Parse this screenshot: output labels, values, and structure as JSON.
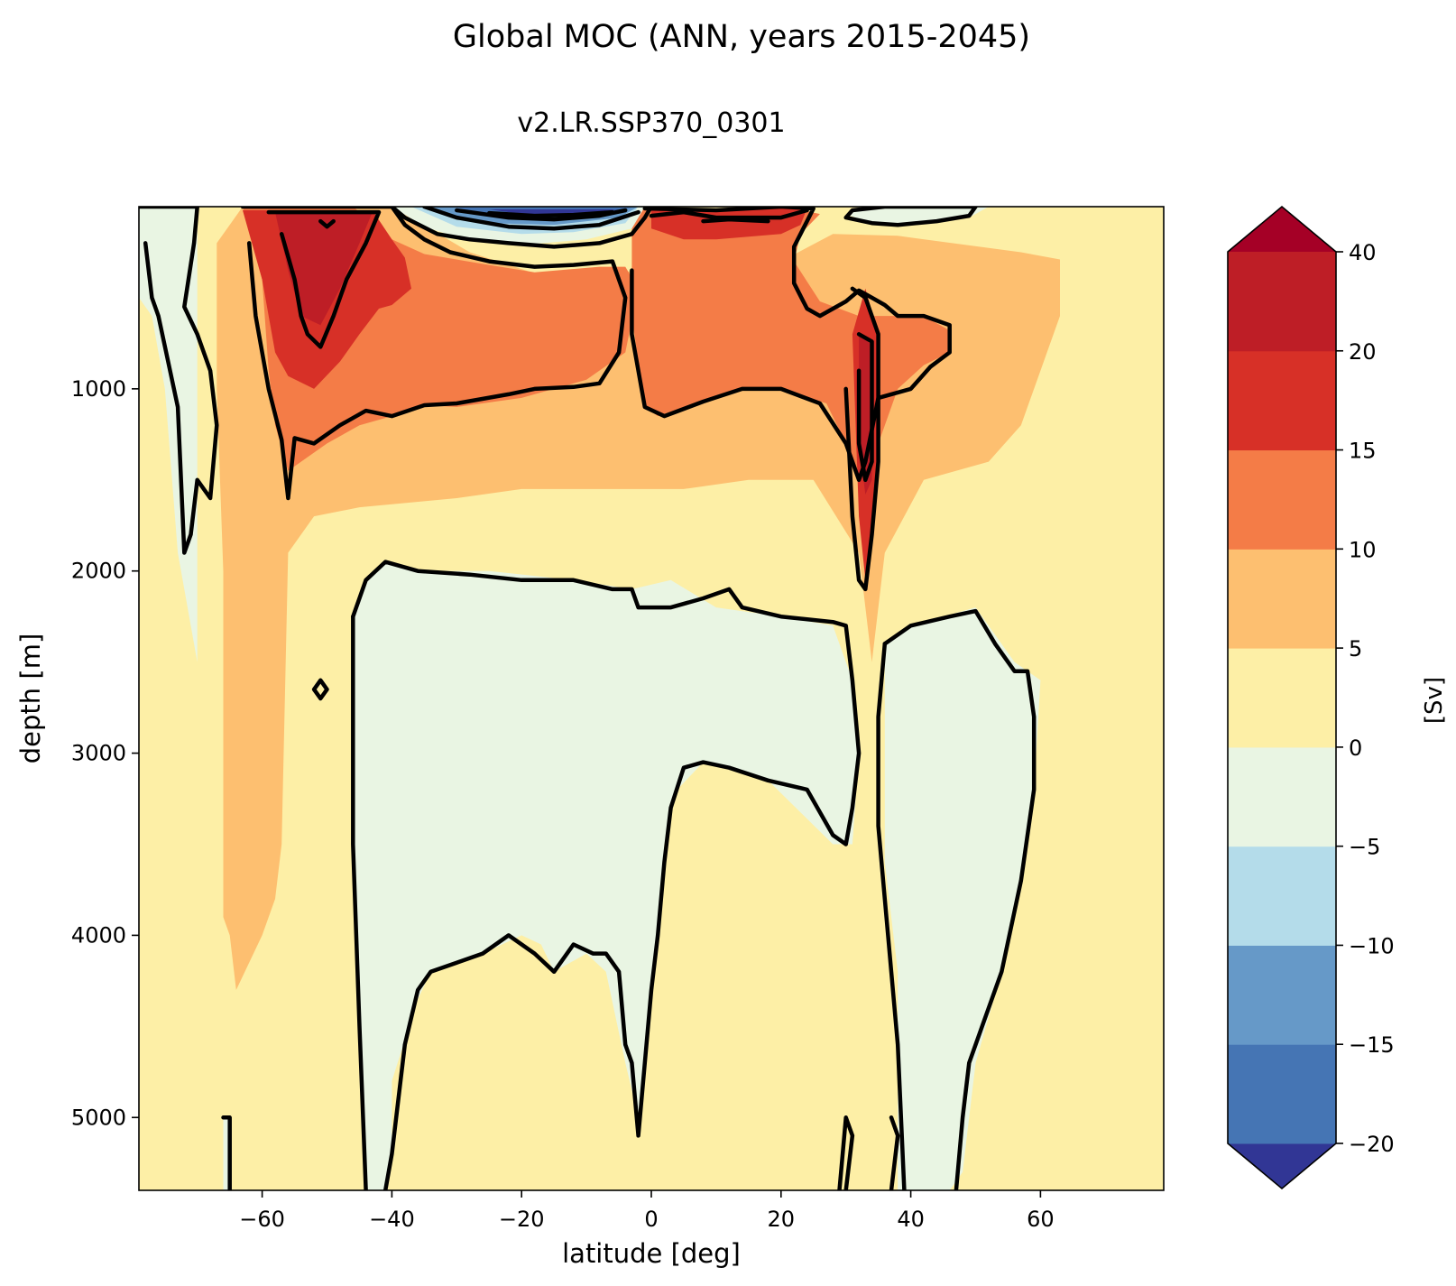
{
  "figure": {
    "title": "Global MOC (ANN, years 2015-2045)",
    "subtitle": "v2.LR.SSP370_0301"
  },
  "chart_data": {
    "type": "heatmap",
    "title": "Global MOC (ANN, years 2015-2045)",
    "subtitle": "v2.LR.SSP370_0301",
    "xlabel": "latitude [deg]",
    "ylabel": "depth [m]",
    "xlim": [
      -79,
      79
    ],
    "ylim": [
      5400,
      0
    ],
    "x_ticks": [
      "−60",
      "−40",
      "−20",
      "0",
      "20",
      "40",
      "60"
    ],
    "y_ticks": [
      "1000",
      "2000",
      "3000",
      "4000",
      "5000"
    ],
    "contour_lines": "black",
    "colorbar": {
      "label": "[Sv]",
      "extend": "both",
      "levels": [
        -20,
        -15,
        -10,
        -5,
        0,
        5,
        10,
        15,
        20,
        40
      ],
      "tick_labels": [
        "−20",
        "−15",
        "−10",
        "−5",
        "0",
        "5",
        "10",
        "15",
        "20",
        "40"
      ],
      "colors": [
        "#313695",
        "#4575b4",
        "#6699c8",
        "#b4dcea",
        "#e9f5e3",
        "#fdefa6",
        "#fdbf70",
        "#f47c47",
        "#d73027",
        "#be1e26",
        "#a50026"
      ],
      "under_color": "#313695",
      "over_color": "#a50026"
    },
    "features": [
      {
        "name": "Southern Ocean positive cell",
        "lat_range": [
          -62,
          -42
        ],
        "depth_range": [
          0,
          1100
        ],
        "max_sv": 25
      },
      {
        "name": "Southern tropical surface negative cell",
        "lat_range": [
          -32,
          -2
        ],
        "depth_range": [
          0,
          250
        ],
        "min_sv": -20
      },
      {
        "name": "Northern tropical surface positive cell",
        "lat_range": [
          0,
          24
        ],
        "depth_range": [
          0,
          200
        ],
        "max_sv": 20
      },
      {
        "name": "North Atlantic deep positive cell",
        "lat_range": [
          30,
          38
        ],
        "depth_range": [
          300,
          2500
        ],
        "max_sv": 20
      },
      {
        "name": "Abyssal negative cell",
        "lat_range": [
          -46,
          32
        ],
        "depth_range": [
          1950,
          4100
        ],
        "min_sv": -5
      }
    ]
  }
}
